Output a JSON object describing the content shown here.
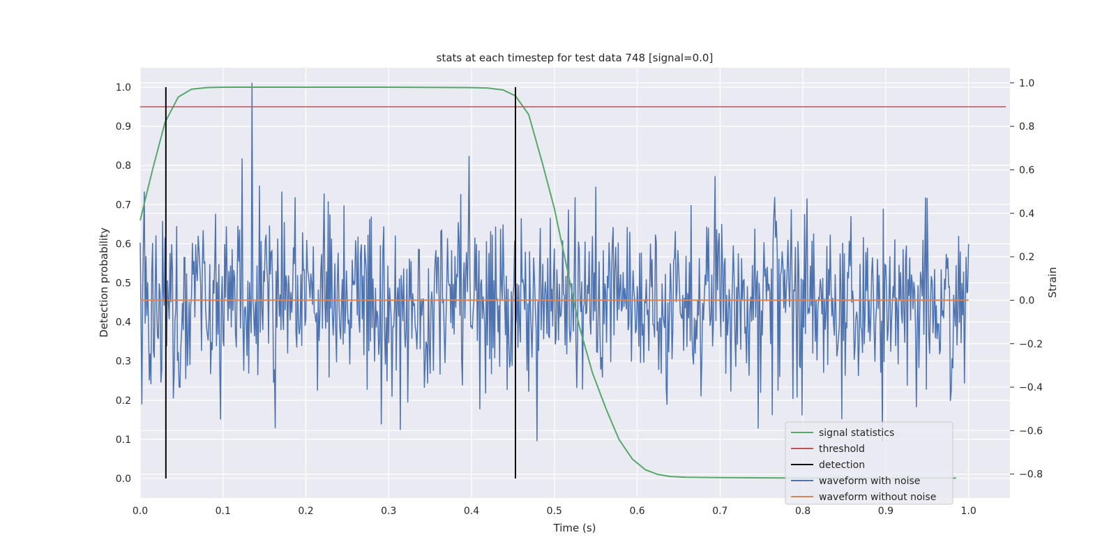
{
  "chart_data": {
    "type": "line",
    "title": "stats at each timestep for test data 748 [signal=0.0]",
    "xlabel": "Time (s)",
    "ylabel": "Detection probability",
    "ylabel_right": "Strain",
    "xlim": [
      0.0,
      1.05
    ],
    "ylim": [
      -0.05,
      1.05
    ],
    "ylim_right": [
      -0.91,
      1.07
    ],
    "xticks": [
      "0.0",
      "0.1",
      "0.2",
      "0.3",
      "0.4",
      "0.5",
      "0.6",
      "0.7",
      "0.8",
      "0.9",
      "1.0"
    ],
    "yticks": [
      "0.0",
      "0.1",
      "0.2",
      "0.3",
      "0.4",
      "0.5",
      "0.6",
      "0.7",
      "0.8",
      "0.9",
      "1.0"
    ],
    "yticks_right": [
      "−0.8",
      "−0.6",
      "−0.4",
      "−0.2",
      "0.0",
      "0.2",
      "0.4",
      "0.6",
      "0.8",
      "1.0"
    ],
    "grid": true,
    "legend_position": "lower-right",
    "series": [
      {
        "name": "signal statistics",
        "axis": "left",
        "color": "#55a868",
        "x": [
          0.0,
          0.015,
          0.03,
          0.046,
          0.062,
          0.08,
          0.1,
          0.2,
          0.3,
          0.4,
          0.42,
          0.438,
          0.453,
          0.469,
          0.485,
          0.5,
          0.515,
          0.53,
          0.546,
          0.562,
          0.578,
          0.594,
          0.61,
          0.625,
          0.64,
          0.66,
          0.7,
          0.8,
          0.9,
          0.985
        ],
        "y": [
          0.66,
          0.79,
          0.91,
          0.975,
          0.995,
          0.999,
          1.0,
          1.0,
          1.0,
          0.999,
          0.998,
          0.993,
          0.978,
          0.93,
          0.81,
          0.69,
          0.54,
          0.39,
          0.27,
          0.18,
          0.1,
          0.05,
          0.022,
          0.01,
          0.005,
          0.003,
          0.002,
          0.001,
          0.001,
          0.001
        ]
      },
      {
        "name": "threshold",
        "axis": "left",
        "color": "#c44e52",
        "x": [
          0.0,
          1.045
        ],
        "y": [
          0.95,
          0.95
        ]
      },
      {
        "name": "detection",
        "axis": "left",
        "color": "#000000",
        "vlines": [
          0.031,
          0.453
        ],
        "y": [
          0.0,
          1.0
        ]
      },
      {
        "name": "waveform with noise",
        "axis": "right",
        "color": "#4c72b0",
        "x_range": [
          0.0,
          1.0
        ],
        "amplitude_std": 0.2,
        "peak": {
          "x": 0.135,
          "y": 1.0
        }
      },
      {
        "name": "waveform without noise",
        "axis": "right",
        "color": "#dd8452",
        "x": [
          0.0,
          1.0
        ],
        "y": [
          0.0,
          0.0
        ]
      }
    ]
  }
}
